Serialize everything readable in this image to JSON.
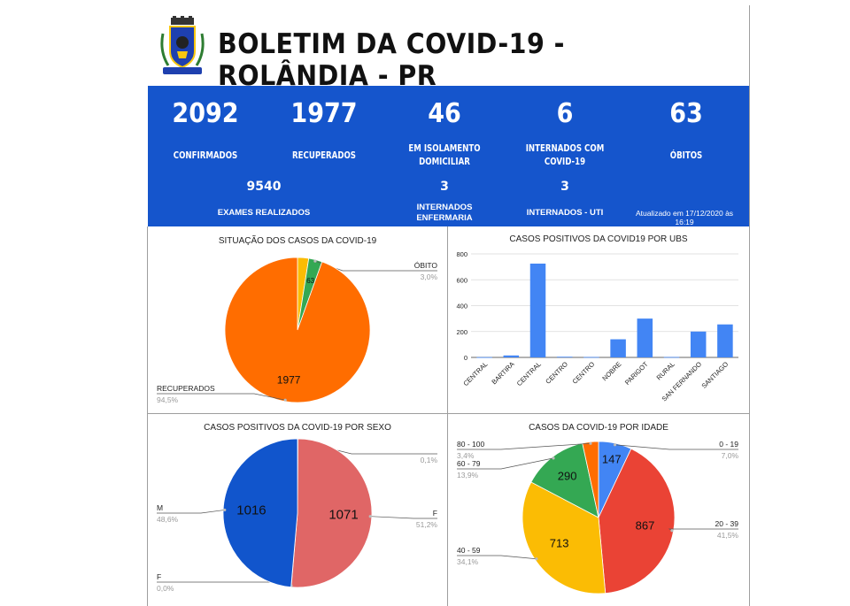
{
  "header": {
    "title": "BOLETIM DA COVID-19 - ROLÂNDIA - PR",
    "logo_icon": "municipal-coat-of-arms-icon"
  },
  "colors": {
    "banner": "#1555cc",
    "orange": "#ff6d00",
    "green": "#34a853",
    "yellow": "#fbbc04",
    "blue": "#4285f4",
    "red": "#ea4335",
    "salmon": "#e06666",
    "darkblue": "#1155cc"
  },
  "stats": {
    "confirmados": {
      "value": "2092",
      "label": "CONFIRMADOS"
    },
    "recuperados": {
      "value": "1977",
      "label": "RECUPERADOS"
    },
    "isolamento": {
      "value": "46",
      "label_line1": "EM ISOLAMENTO",
      "label_line2": "DOMICILIAR"
    },
    "internados": {
      "value": "6",
      "label_line1": "INTERNADOS COM",
      "label_line2": "COVID-19"
    },
    "obitos": {
      "value": "63",
      "label": "ÓBITOS"
    },
    "exames": {
      "value": "9540",
      "label": "EXAMES REALIZADOS"
    },
    "enfermaria": {
      "value": "3",
      "label_line1": "INTERNADOS",
      "label_line2": "ENFERMARIA"
    },
    "uti": {
      "value": "3",
      "label": "INTERNADOS - UTI"
    },
    "updated": "Atualizado em 17/12/2020 às 16:19"
  },
  "chart_data": [
    {
      "type": "pie",
      "title": "SITUAÇÃO DOS CASOS DA COVID-19",
      "slices": [
        {
          "name": "",
          "value": 52,
          "color": "#fbbc04",
          "label": "",
          "pct": ""
        },
        {
          "name": "ÓBITO",
          "value": 63,
          "color": "#34a853",
          "label": "63",
          "pct": "3,0%"
        },
        {
          "name": "RECUPERADOS",
          "value": 1977,
          "color": "#ff6d00",
          "label": "1977",
          "pct": "94,5%"
        }
      ]
    },
    {
      "type": "bar",
      "title": "CASOS POSITIVOS DA COVID19 POR UBS",
      "categories": [
        "CENTRAL",
        "BARTIRA",
        "CENTRAL",
        "CENTRO",
        "CENTRO",
        "NOBRE",
        "PARIGOT",
        "RURAL",
        "SAN FERNANDO",
        "SANTIAGO"
      ],
      "values": [
        2,
        15,
        725,
        5,
        3,
        140,
        300,
        3,
        200,
        255
      ],
      "ylim": [
        0,
        800
      ],
      "yticks": [
        "0",
        "200",
        "400",
        "600",
        "800"
      ],
      "color": "#4285f4",
      "grid": true
    },
    {
      "type": "pie",
      "title": "CASOS POSITIVOS DA COVID-19 POR SEXO",
      "slices": [
        {
          "name": "",
          "value": 2,
          "color": "#4285f4",
          "label": "",
          "pct": "0,1%"
        },
        {
          "name": "F",
          "value": 1071,
          "color": "#e06666",
          "label": "1071",
          "pct": "51,2%"
        },
        {
          "name": "F",
          "value": 1,
          "color": "#9e9e9e",
          "label": "",
          "pct": "0,0%"
        },
        {
          "name": "M",
          "value": 1016,
          "color": "#1155cc",
          "label": "1016",
          "pct": "48,6%"
        }
      ]
    },
    {
      "type": "pie",
      "title": "CASOS DA COVID-19 POR IDADE",
      "slices": [
        {
          "name": "0 - 19",
          "value": 147,
          "color": "#4285f4",
          "label": "147",
          "pct": "7,0%"
        },
        {
          "name": "20 - 39",
          "value": 867,
          "color": "#ea4335",
          "label": "867",
          "pct": "41,5%"
        },
        {
          "name": "40 - 59",
          "value": 713,
          "color": "#fbbc04",
          "label": "713",
          "pct": "34,1%"
        },
        {
          "name": "60 - 79",
          "value": 290,
          "color": "#34a853",
          "label": "290",
          "pct": "13,9%"
        },
        {
          "name": "80 - 100",
          "value": 71,
          "color": "#ff6d00",
          "label": "",
          "pct": "3,4%"
        }
      ]
    }
  ]
}
